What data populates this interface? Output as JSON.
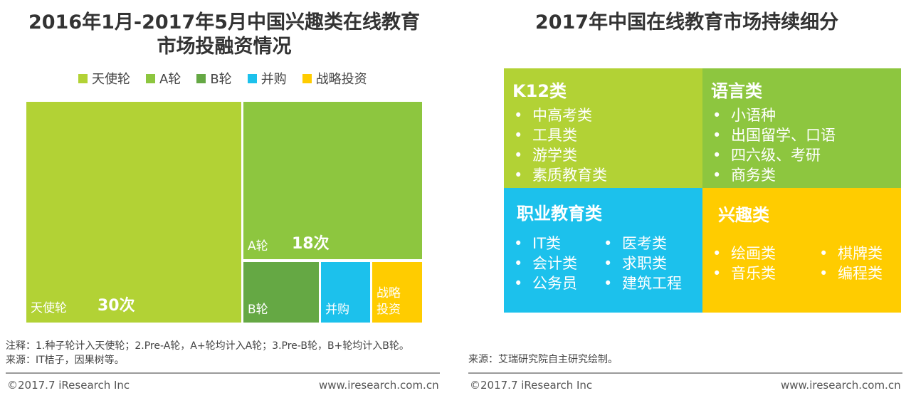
{
  "left_panel": {
    "title_line1": "2016年1月-2017年5月中国兴趣类在线教育",
    "title_line2": "市场投融资情况",
    "notes_line1": "注释：1.种子轮计入天使轮；2.Pre-A轮，A+轮均计入A轮；3.Pre-B轮，B+轮均计入B轮。",
    "notes_line2": "来源：IT桔子，因果树等。",
    "footer_left": "©2017.7 iResearch Inc",
    "footer_right": "www.iresearch.com.cn"
  },
  "right_panel": {
    "title": "2017年中国在线教育市场持续细分",
    "source": "来源：艾瑞研究院自主研究绘制。",
    "footer_left": "©2017.7 iResearch Inc",
    "footer_right": "www.iresearch.com.cn",
    "quadrants": [
      {
        "title": "K12类",
        "color": "#b2d235",
        "items": [
          "中高考类",
          "工具类",
          "游学类",
          "素质教育类"
        ]
      },
      {
        "title": "语言类",
        "color": "#8dc63f",
        "items": [
          "小语种",
          "出国留学、口语",
          "四六级、考研",
          "商务类"
        ]
      },
      {
        "title": "职业教育类",
        "color": "#1cc1ec",
        "items_col1": [
          "IT类",
          "会计类",
          "公务员"
        ],
        "items_col2": [
          "医考类",
          "求职类",
          "建筑工程"
        ]
      },
      {
        "title": "兴趣类",
        "color": "#ffcc00",
        "items_col1": [
          "绘画类",
          "音乐类"
        ],
        "items_col2": [
          "棋牌类",
          "编程类"
        ]
      }
    ]
  },
  "chart_data": {
    "type": "treemap",
    "title": "2016年1月-2017年5月中国兴趣类在线教育市场投融资情况",
    "legend": [
      {
        "name": "天使轮",
        "color": "#b2d235"
      },
      {
        "name": "A轮",
        "color": "#8dc63f"
      },
      {
        "name": "B轮",
        "color": "#65a844"
      },
      {
        "name": "并购",
        "color": "#1cc1ec"
      },
      {
        "name": "战略投资",
        "color": "#ffcc00"
      }
    ],
    "categories": [
      "天使轮",
      "A轮",
      "B轮",
      "并购",
      "战略投资"
    ],
    "values": [
      30,
      18,
      null,
      null,
      null
    ],
    "value_labels": [
      "30次",
      "18次",
      "",
      "",
      ""
    ],
    "cell_labels": [
      "天使轮",
      "A轮",
      "B轮",
      "并购",
      "战略\n投资"
    ]
  }
}
